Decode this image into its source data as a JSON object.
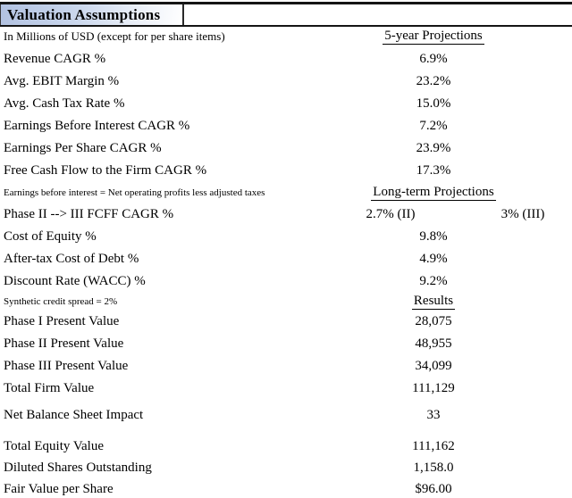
{
  "header": {
    "title": "Valuation Assumptions",
    "subtitle": "In Millions of USD (except for per share items)",
    "col_header_5yr": "5-year Projections"
  },
  "table": {
    "five_year_rows": [
      {
        "label": "Revenue CAGR %",
        "value": "6.9%"
      },
      {
        "label": "Avg. EBIT Margin %",
        "value": "23.2%"
      },
      {
        "label": "Avg. Cash Tax Rate %",
        "value": "15.0%"
      },
      {
        "label": "Earnings Before Interest CAGR %",
        "value": "7.2%"
      },
      {
        "label": "Earnings Per Share CAGR %",
        "value": "23.9%"
      },
      {
        "label": "Free Cash Flow to the Firm CAGR %",
        "value": "17.3%"
      }
    ],
    "note_ebi": "Earnings before interest = Net operating profits less adjusted taxes",
    "col_header_longterm": "Long-term Projections",
    "phase_row": {
      "label": "Phase II --> III FCFF CAGR %",
      "value_phase2": "2.7% (II)",
      "value_phase3": "3% (III)"
    },
    "longterm_rows": [
      {
        "label": "Cost of Equity %",
        "value": "9.8%"
      },
      {
        "label": "After-tax Cost of Debt %",
        "value": "4.9%"
      },
      {
        "label": "Discount Rate (WACC) %",
        "value": "9.2%"
      }
    ],
    "note_spread": "Synthetic credit spread = 2%",
    "col_header_results": "Results",
    "results_rows": [
      {
        "label": "Phase I Present Value",
        "value": "28,075"
      },
      {
        "label": "Phase II Present Value",
        "value": "48,955"
      },
      {
        "label": "Phase III Present Value",
        "value": "34,099"
      },
      {
        "label": "Total Firm Value",
        "value": "111,129"
      }
    ],
    "balance_row": {
      "label": "Net Balance Sheet Impact",
      "value": "33"
    },
    "equity_rows": [
      {
        "label": "Total Equity Value",
        "value": "111,162"
      },
      {
        "label": "Diluted Shares Outstanding",
        "value": "1,158.0"
      },
      {
        "label": "Fair Value per Share",
        "value": "$96.00"
      }
    ]
  },
  "colors": {
    "title_gradient_start": "#b2c2e1",
    "title_gradient_end": "#ffffff",
    "border": "#151515",
    "text": "#000000"
  }
}
